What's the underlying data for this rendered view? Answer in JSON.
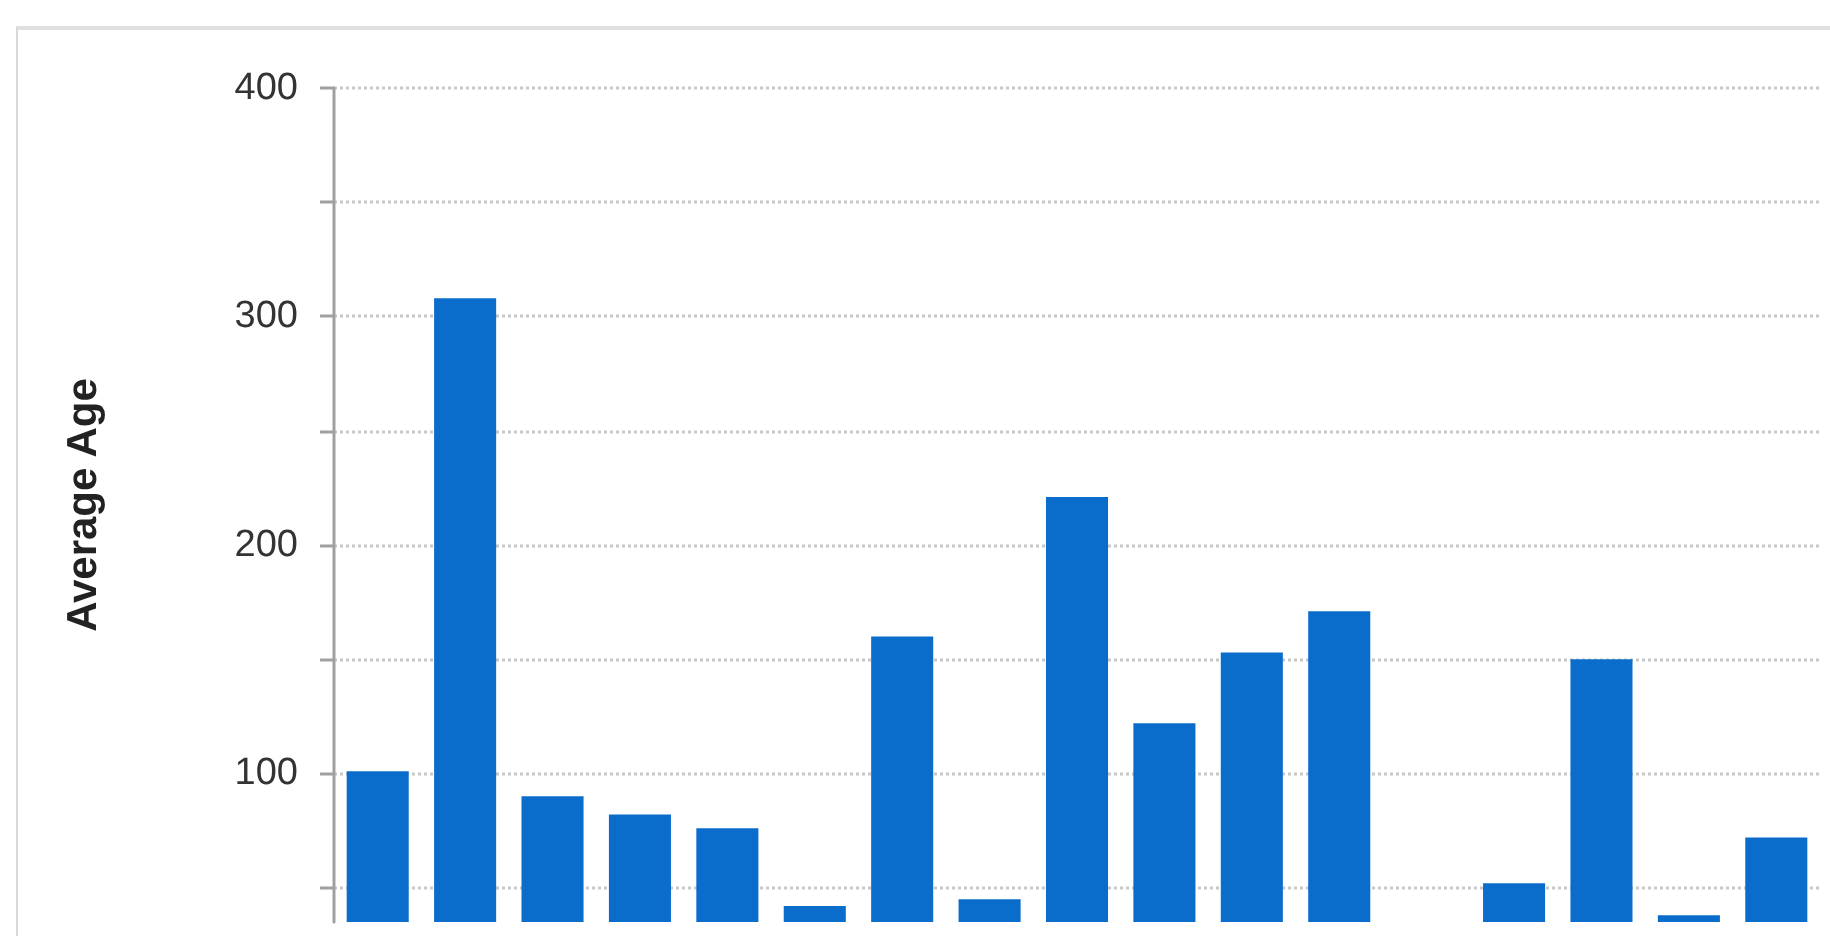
{
  "chart_data": {
    "type": "bar",
    "ylabel": "Average Age",
    "categories": [
      null,
      null,
      null,
      null,
      null,
      null,
      null,
      null,
      null,
      null,
      null,
      null,
      null,
      null,
      null,
      null,
      null
    ],
    "values": [
      101,
      308,
      90,
      82,
      76,
      42,
      160,
      45,
      221,
      122,
      153,
      171,
      null,
      52,
      150,
      38,
      72
    ],
    "color": "#0b6dcb",
    "ylim": [
      35,
      400
    ],
    "yticks": [
      {
        "value": 50,
        "label": null
      },
      100,
      {
        "value": 150,
        "label": null
      },
      200,
      {
        "value": 250,
        "label": null
      },
      300,
      {
        "value": 350,
        "label": null
      },
      400
    ],
    "grid": "y",
    "tick_labels": "y"
  }
}
